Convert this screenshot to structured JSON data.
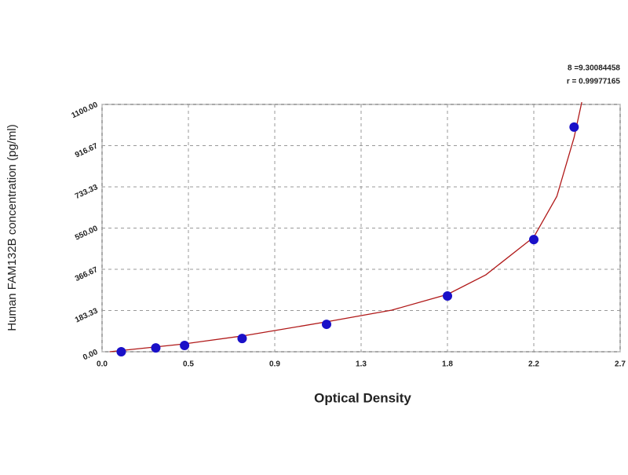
{
  "chart_data": {
    "type": "scatter",
    "x_label": "Optical Density",
    "y_label": "Human FAM132B concentration (pg/ml)",
    "annotations": [
      "8 =9.30084458",
      "r = 0.99977165"
    ],
    "xlim": [
      0,
      2.7
    ],
    "xticks": [
      {
        "value": 0,
        "label": "0.0"
      },
      {
        "value": 0.45,
        "label": "0.5"
      },
      0.9,
      {
        "value": 1.35,
        "label": "1.3"
      },
      1.8,
      {
        "value": 2.25,
        "label": "2.2"
      },
      2.7
    ],
    "ylim": [
      0,
      1100
    ],
    "yticks": [
      {
        "value": 0,
        "label": "0.00"
      },
      {
        "value": 183.33,
        "label": "183.33"
      },
      {
        "value": 366.67,
        "label": "366.67"
      },
      {
        "value": 550,
        "label": "550.00"
      },
      {
        "value": 733.33,
        "label": "733.33"
      },
      {
        "value": 916.67,
        "label": "916.67"
      },
      {
        "value": 1100,
        "label": "1100.00"
      }
    ],
    "grid": true,
    "series": [
      {
        "color": "#1a10c8",
        "x": [
          0.1,
          0.28,
          0.43,
          0.73,
          1.17,
          1.8,
          2.25,
          2.46
        ],
        "values": [
          0,
          17,
          28,
          59,
          122,
          248,
          499,
          999
        ]
      }
    ],
    "fit": {
      "color": "#b01818",
      "x": [
        0.04,
        0.43,
        0.73,
        1.17,
        1.51,
        1.8,
        2.0,
        2.25,
        2.37,
        2.46,
        2.5
      ],
      "values": [
        0,
        35,
        70,
        133,
        185,
        255,
        342,
        510,
        691,
        953,
        1110
      ]
    }
  }
}
